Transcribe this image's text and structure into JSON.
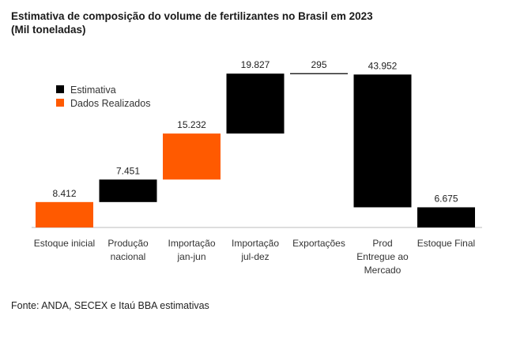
{
  "title_line1": "Estimativa de composição do volume de fertilizantes no Brasil em 2023",
  "title_line2": "(Mil toneladas)",
  "source": "Fonte: ANDA, SECEX e  Itaú BBA estimativas",
  "colors": {
    "estimativa": "#000000",
    "realizado": "#ff5a00"
  },
  "chart_data": {
    "type": "bar",
    "subtype": "waterfall",
    "title": "Estimativa de composição do volume de fertilizantes no Brasil em 2023",
    "subtitle": "(Mil toneladas)",
    "legend": [
      {
        "name": "Estimativa",
        "color": "#000000"
      },
      {
        "name": "Dados Realizados",
        "color": "#ff5a00"
      }
    ],
    "legend_position": "top-left",
    "grid": false,
    "unit": "Mil toneladas",
    "items": [
      {
        "category": [
          "Estoque inicial"
        ],
        "value": 8412,
        "label": "8.412",
        "series": "Dados Realizados",
        "direction": "total"
      },
      {
        "category": [
          "Produção",
          "nacional"
        ],
        "value": 7451,
        "label": "7.451",
        "series": "Estimativa",
        "direction": "up"
      },
      {
        "category": [
          "Importação",
          "jan-jun"
        ],
        "value": 15232,
        "label": "15.232",
        "series": "Dados Realizados",
        "direction": "up"
      },
      {
        "category": [
          "Importação",
          "jul-dez"
        ],
        "value": 19827,
        "label": "19.827",
        "series": "Estimativa",
        "direction": "up"
      },
      {
        "category": [
          "Exportações"
        ],
        "value": 295,
        "label": "295",
        "series": "Estimativa",
        "direction": "down"
      },
      {
        "category": [
          "Prod",
          "Entregue ao",
          "Mercado"
        ],
        "value": 43952,
        "label": "43.952",
        "series": "Estimativa",
        "direction": "down"
      },
      {
        "category": [
          "Estoque Final"
        ],
        "value": 6675,
        "label": "6.675",
        "series": "Estimativa",
        "direction": "total"
      }
    ]
  }
}
